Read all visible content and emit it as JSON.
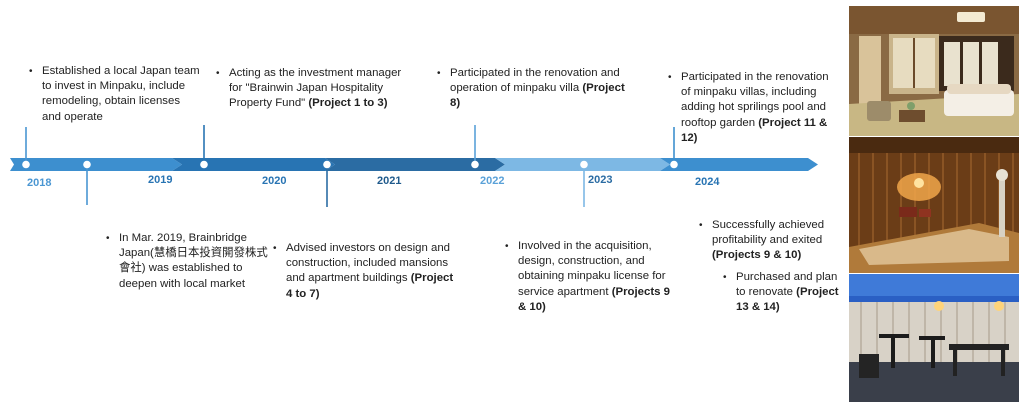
{
  "years": [
    "2018",
    "2019",
    "2020",
    "2021",
    "2022",
    "2023",
    "2024"
  ],
  "colors": {
    "seg1": "#3d8fcf",
    "seg2": "#2a77b6",
    "seg3": "#1f5f93",
    "seg4": "#2b6fa6",
    "seg5": "#78b6e3",
    "seg6": "#5aa1d8",
    "tick": "#3d8fcf"
  },
  "events": [
    {
      "pre": "Established a local Japan team to invest in Minpaku, include remodeling, obtain licenses and operate",
      "bold": "",
      "post": ""
    },
    {
      "pre": "Acting as the investment manager for \"Brainwin Japan Hospitality Property Fund\" ",
      "bold": "(Project 1 to 3)",
      "post": ""
    },
    {
      "pre": "Participated in the renovation and operation of minpaku villa ",
      "bold": "(Project 8)",
      "post": ""
    },
    {
      "pre": "Participated in the renovation of minpaku villas, including adding hot sprilings pool and rooftop garden ",
      "bold": "(Project 11 & 12)",
      "post": ""
    },
    {
      "pre": "In Mar. 2019, Brainbridge Japan(慧橋日本投資開發株式會社) was established to deepen with local market",
      "bold": "",
      "post": ""
    },
    {
      "pre": "Advised investors on design and construction, included mansions and apartment buildings ",
      "bold": "(Project 4 to 7)",
      "post": ""
    },
    {
      "pre": "Involved in the acquisition, design, construction, and obtaining minpaku license for service apartment ",
      "bold": "(Projects 9 & 10)",
      "post": ""
    },
    {
      "pre": "Successfully achieved profitability and exited ",
      "bold": "(Projects 9 & 10)",
      "post": ""
    },
    {
      "pre": "Purchased and plan to renovate ",
      "bold": "(Project 13 & 14)",
      "post": ""
    }
  ]
}
